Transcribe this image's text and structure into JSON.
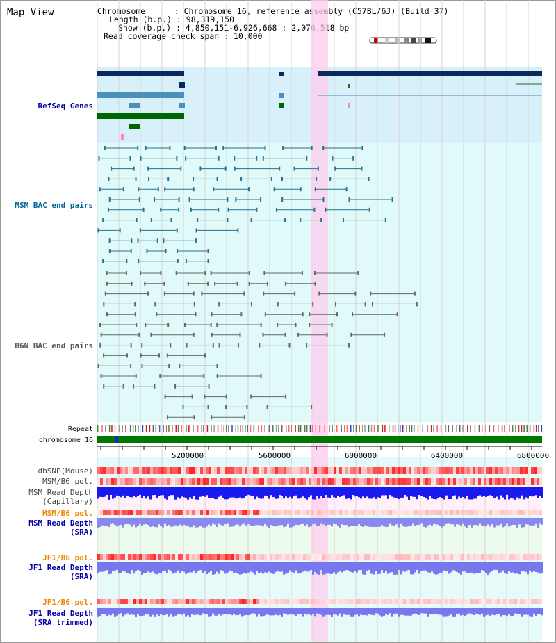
{
  "title": "Map View",
  "info": {
    "line1": "Chromosome      : Chromosome 16, reference assembly (C57BL/6J) (Build 37)",
    "line2": "Length (b.p.) : 98,319,150",
    "line3": "Show (b.p.) : 4,850,151-6,926,668 : 2,076,518 bp",
    "line4": "Read coverage check span : 10,000"
  },
  "labels": {
    "refseq": "RefSeq Genes",
    "msm_bac": "MSM BAC end pairs",
    "b6n_bac": "B6N BAC end pairs",
    "repeat": "Repeat",
    "chromosome": "chromosome 16",
    "dbsnp": "dbSNP(Mouse)",
    "msm_b6_pol": "MSM/B6 pol.",
    "msm_depth_cap": "MSM Read Depth\n(Capillary)",
    "msm_b6_pol2": "MSM/B6 pol.",
    "msm_depth_sra": "MSM Read Depth\n(SRA)",
    "jf1_b6_pol": "JF1/B6 pol.",
    "jf1_depth_sra": "JF1 Read Depth\n(SRA)",
    "jf1_b6_pol2": "JF1/B6 pol.",
    "jf1_depth_trim": "JF1 Read Depth\n(SRA trimmed)"
  },
  "axis": {
    "ticks": [
      "5200000",
      "5600000",
      "6000000",
      "6400000",
      "6800000"
    ]
  },
  "colors": {
    "refseq_label": "#0000aa",
    "msm_label": "#006699",
    "b6n_label": "#555555",
    "pol_label": "#ee8800",
    "depth_label": "#0000aa",
    "highlight": "#ffccee",
    "chromosome_bar": "#007700",
    "refseq_bg": "#d8f0fa",
    "bac_bg": "#e0fafa"
  }
}
